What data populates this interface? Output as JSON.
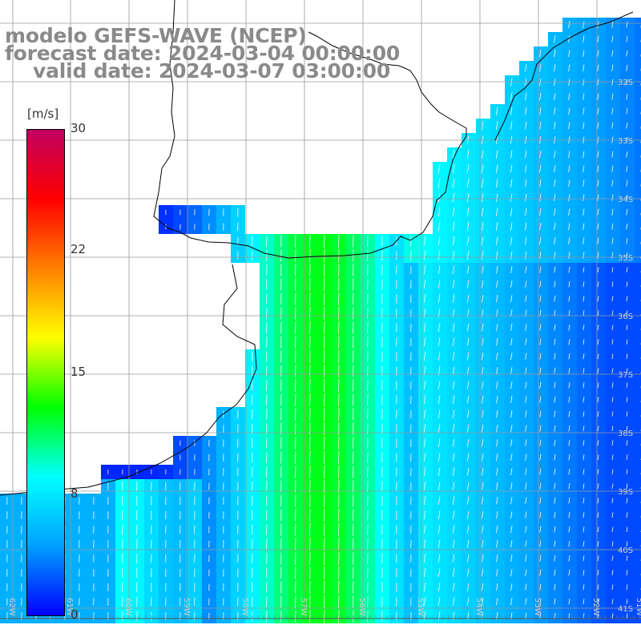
{
  "header": {
    "model": "modelo GEFS-WAVE (NCEP)",
    "forecast": "forecast date: 2024-03-04 00:00:00",
    "valid": "valid date: 2024-03-07 03:00:00"
  },
  "colorbar": {
    "unit": "[m/s]",
    "ticks": [
      "30",
      "22",
      "15",
      "8",
      "0"
    ],
    "range": [
      0,
      30
    ],
    "colors": [
      "#0000ff",
      "#00a0ff",
      "#00ffff",
      "#00ff00",
      "#ffff00",
      "#ff8000",
      "#ff0000",
      "#c00060"
    ]
  },
  "lat_labels": [
    "32S",
    "33S",
    "34S",
    "35S",
    "36S",
    "37S",
    "38S",
    "39S",
    "40S",
    "41S"
  ],
  "lon_labels": [
    "62W",
    "61W",
    "60W",
    "59W",
    "58W",
    "57W",
    "56W",
    "55W",
    "54W",
    "53W",
    "52W",
    "51W"
  ],
  "field": {
    "variable": "wind speed",
    "units": "m/s",
    "description_values": {
      "coastal_green_core_max": 13,
      "offshore_min": 2
    }
  },
  "colors": {
    "grid": "#9a9a9a",
    "coast": "#000000",
    "title": "#8a8a8a",
    "arrow": "#ffffff"
  }
}
